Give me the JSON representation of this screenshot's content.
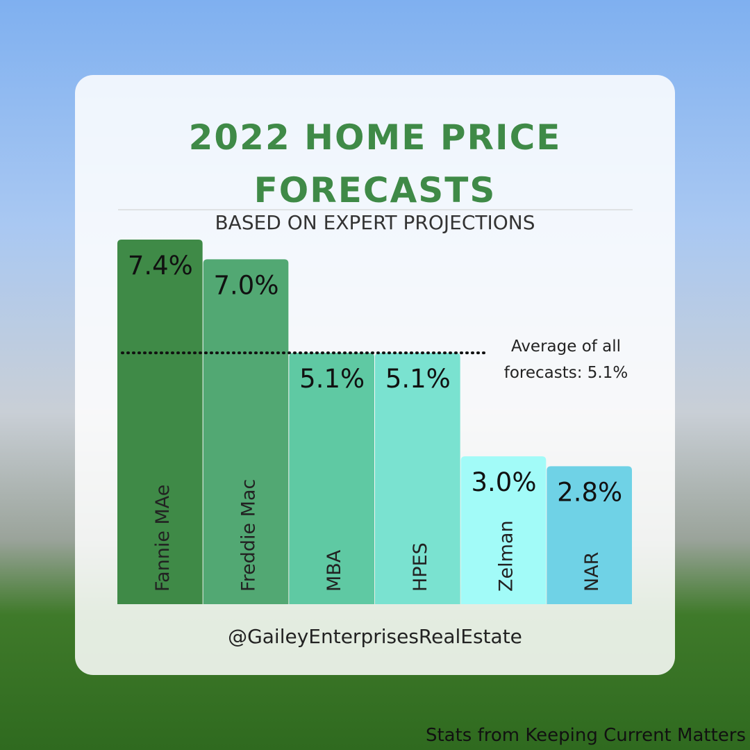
{
  "chart_data": {
    "type": "bar",
    "title": "2022 HOME PRICE FORECASTS",
    "subtitle": "BASED ON EXPERT PROJECTIONS",
    "categories": [
      "Fannie MAe",
      "Freddie Mac",
      "MBA",
      "HPES",
      "Zelman",
      "NAR"
    ],
    "values": [
      7.4,
      7.0,
      5.1,
      5.1,
      3.0,
      2.8
    ],
    "value_labels": [
      "7.4%",
      "7.0%",
      "5.1%",
      "5.1%",
      "3.0%",
      "2.8%"
    ],
    "colors": [
      "#3f8a47",
      "#52a873",
      "#5fc9a3",
      "#7ae2d0",
      "#a2fbf8",
      "#6fd2e6"
    ],
    "average": {
      "value": 5.1,
      "label": "Average of all forecasts: 5.1%"
    },
    "handle": "@GaileyEnterprisesRealEstate",
    "source": "Stats from Keeping Current Matters"
  }
}
